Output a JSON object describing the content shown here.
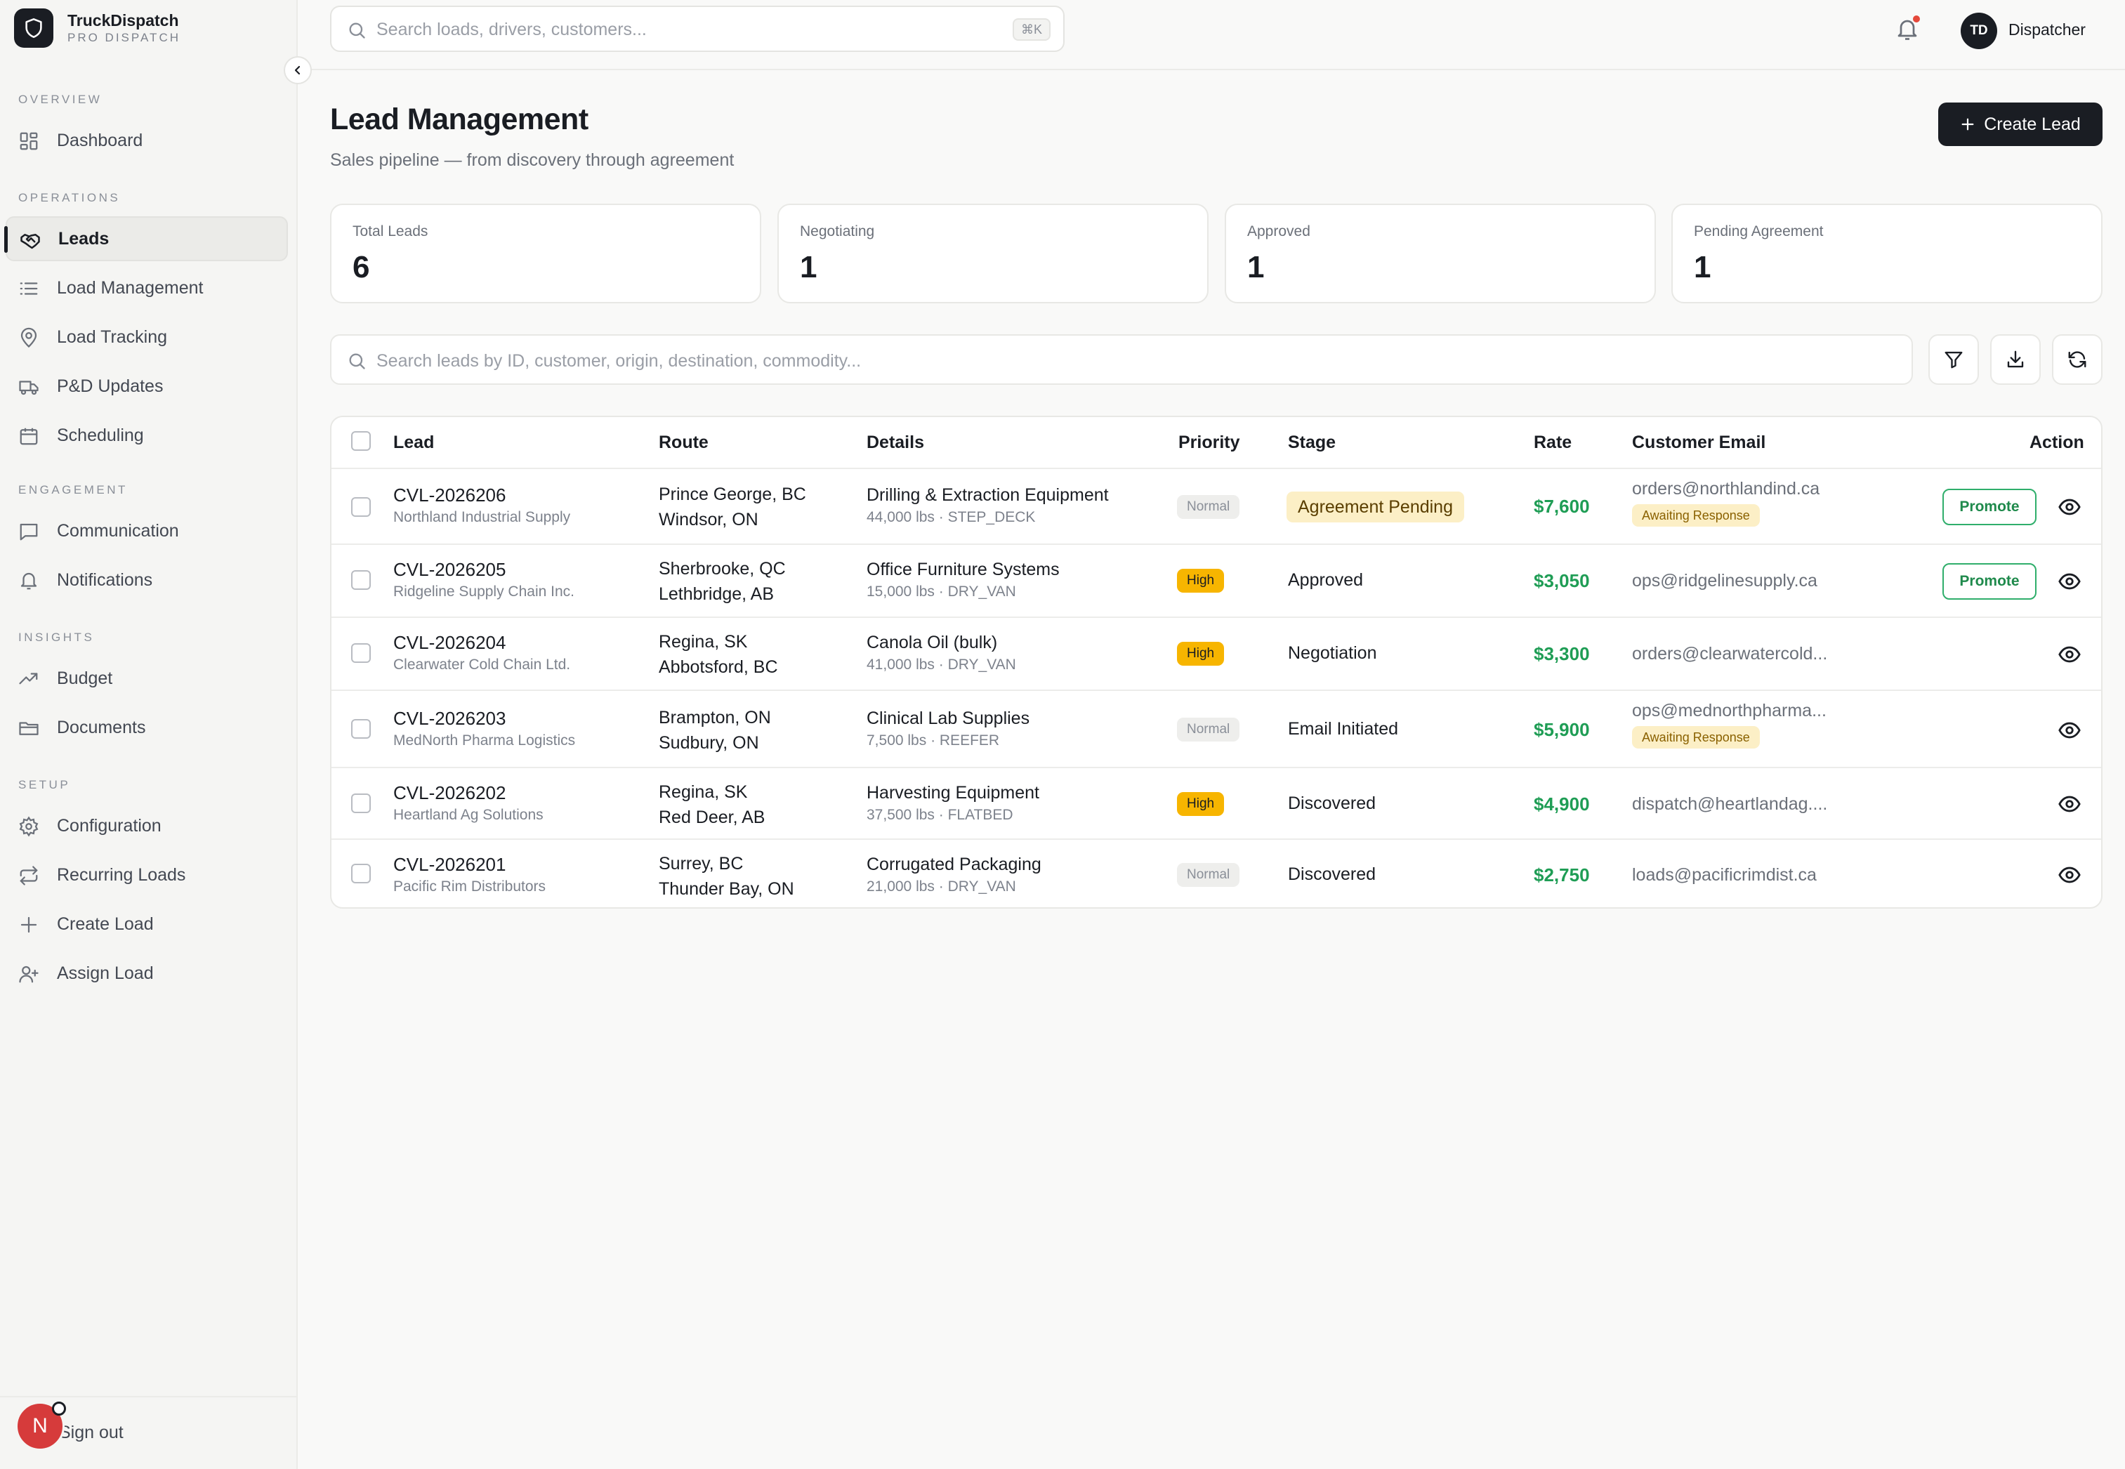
{
  "app": {
    "name": "TruckDispatch",
    "subtitle": "PRO DISPATCH"
  },
  "sidebar": {
    "sections": [
      {
        "label": "OVERVIEW",
        "items": [
          {
            "label": "Dashboard",
            "icon": "grid-icon"
          }
        ]
      },
      {
        "label": "OPERATIONS",
        "items": [
          {
            "label": "Leads",
            "icon": "handshake-icon",
            "active": true
          },
          {
            "label": "Load Management",
            "icon": "list-icon"
          },
          {
            "label": "Load Tracking",
            "icon": "map-pin-icon"
          },
          {
            "label": "P&D Updates",
            "icon": "truck-icon"
          },
          {
            "label": "Scheduling",
            "icon": "calendar-icon"
          }
        ]
      },
      {
        "label": "ENGAGEMENT",
        "items": [
          {
            "label": "Communication",
            "icon": "message-icon"
          },
          {
            "label": "Notifications",
            "icon": "bell-icon"
          }
        ]
      },
      {
        "label": "INSIGHTS",
        "items": [
          {
            "label": "Budget",
            "icon": "trending-up-icon"
          },
          {
            "label": "Documents",
            "icon": "folder-icon"
          }
        ]
      },
      {
        "label": "SETUP",
        "items": [
          {
            "label": "Configuration",
            "icon": "gear-icon"
          },
          {
            "label": "Recurring Loads",
            "icon": "repeat-icon"
          },
          {
            "label": "Create Load",
            "icon": "plus-icon"
          },
          {
            "label": "Assign Load",
            "icon": "user-plus-icon"
          }
        ]
      }
    ],
    "footer": {
      "avatar_initial": "N",
      "signout_label": "Sign out"
    }
  },
  "topbar": {
    "search_placeholder": "Search loads, drivers, customers...",
    "shortcut": "⌘K",
    "user_initials": "TD",
    "user_name": "Dispatcher"
  },
  "page": {
    "title": "Lead Management",
    "subtitle": "Sales pipeline — from discovery through agreement",
    "create_label": "Create Lead"
  },
  "stats": [
    {
      "label": "Total Leads",
      "value": "6"
    },
    {
      "label": "Negotiating",
      "value": "1"
    },
    {
      "label": "Approved",
      "value": "1"
    },
    {
      "label": "Pending Agreement",
      "value": "1"
    }
  ],
  "filter": {
    "placeholder": "Search leads by ID, customer, origin, destination, commodity..."
  },
  "table": {
    "columns": {
      "lead": "Lead",
      "route": "Route",
      "details": "Details",
      "priority": "Priority",
      "stage": "Stage",
      "rate": "Rate",
      "email": "Customer Email",
      "action": "Action"
    },
    "promote_label": "Promote",
    "rows": [
      {
        "id": "CVL-2026206",
        "customer": "Northland Industrial Supply",
        "origin": "Prince George, BC",
        "destination": "Windsor, ON",
        "commodity": "Drilling & Extraction Equipment",
        "meta": "44,000 lbs · STEP_DECK",
        "priority": "Normal",
        "stage": "Agreement Pending",
        "rate": "$7,600",
        "email": "orders@northlandind.ca",
        "email_badge": "Awaiting Response",
        "promote": true
      },
      {
        "id": "CVL-2026205",
        "customer": "Ridgeline Supply Chain Inc.",
        "origin": "Sherbrooke, QC",
        "destination": "Lethbridge, AB",
        "commodity": "Office Furniture Systems",
        "meta": "15,000 lbs · DRY_VAN",
        "priority": "High",
        "stage": "Approved",
        "rate": "$3,050",
        "email": "ops@ridgelinesupply.ca",
        "email_badge": "",
        "promote": true
      },
      {
        "id": "CVL-2026204",
        "customer": "Clearwater Cold Chain Ltd.",
        "origin": "Regina, SK",
        "destination": "Abbotsford, BC",
        "commodity": "Canola Oil (bulk)",
        "meta": "41,000 lbs · DRY_VAN",
        "priority": "High",
        "stage": "Negotiation",
        "rate": "$3,300",
        "email": "orders@clearwatercold...",
        "email_badge": "",
        "promote": false
      },
      {
        "id": "CVL-2026203",
        "customer": "MedNorth Pharma Logistics",
        "origin": "Brampton, ON",
        "destination": "Sudbury, ON",
        "commodity": "Clinical Lab Supplies",
        "meta": "7,500 lbs · REEFER",
        "priority": "Normal",
        "stage": "Email Initiated",
        "rate": "$5,900",
        "email": "ops@mednorthpharma...",
        "email_badge": "Awaiting Response",
        "promote": false
      },
      {
        "id": "CVL-2026202",
        "customer": "Heartland Ag Solutions",
        "origin": "Regina, SK",
        "destination": "Red Deer, AB",
        "commodity": "Harvesting Equipment",
        "meta": "37,500 lbs · FLATBED",
        "priority": "High",
        "stage": "Discovered",
        "rate": "$4,900",
        "email": "dispatch@heartlandag....",
        "email_badge": "",
        "promote": false
      },
      {
        "id": "CVL-2026201",
        "customer": "Pacific Rim Distributors",
        "origin": "Surrey, BC",
        "destination": "Thunder Bay, ON",
        "commodity": "Corrugated Packaging",
        "meta": "21,000 lbs · DRY_VAN",
        "priority": "Normal",
        "stage": "Discovered",
        "rate": "$2,750",
        "email": "loads@pacificrimdist.ca",
        "email_badge": "",
        "promote": false
      }
    ]
  },
  "colors": {
    "accent": "#1a1d23",
    "rate_green": "#1f9d55",
    "high_priority": "#f7b500",
    "pending_bg": "#fcefc6",
    "notification_dot": "#e5483a"
  }
}
